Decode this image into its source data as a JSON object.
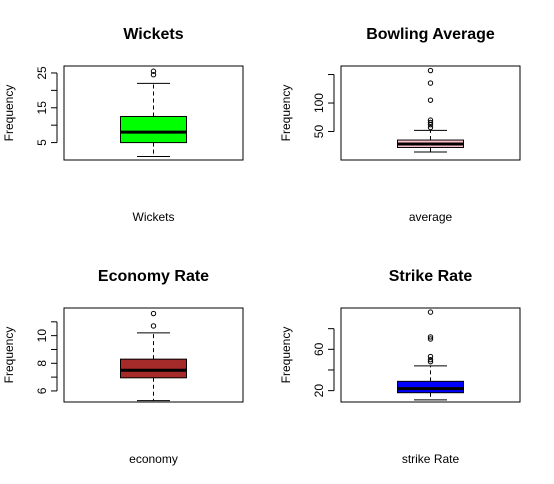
{
  "chart_data": [
    {
      "type": "boxplot",
      "title": "Wickets",
      "xlabel": "Wickets",
      "ylabel": "Frequency",
      "ylim": [
        0,
        27
      ],
      "yticks": [
        5,
        15,
        25
      ],
      "minor_ticks": [
        10,
        20
      ],
      "box_color": "#00ff00",
      "stats": {
        "min": 1,
        "q1": 5,
        "median": 8,
        "q3": 12.5,
        "max": 22
      },
      "outliers": [
        24.5,
        25.5
      ]
    },
    {
      "type": "boxplot",
      "title": "Bowling Average",
      "xlabel": "average",
      "ylabel": "Frequency",
      "ylim": [
        0,
        165
      ],
      "yticks": [
        50,
        100
      ],
      "minor_ticks": [
        150
      ],
      "box_color": "#ffc0cb",
      "stats": {
        "min": 14,
        "q1": 22,
        "median": 28,
        "q3": 35,
        "max": 52
      },
      "outliers": [
        57,
        62,
        66,
        70,
        105,
        135,
        157
      ]
    },
    {
      "type": "boxplot",
      "title": "Economy Rate",
      "xlabel": "economy",
      "ylabel": "Frequency",
      "ylim": [
        5.2,
        12
      ],
      "yticks": [
        6,
        8,
        10
      ],
      "minor_ticks": [
        7,
        9,
        11
      ],
      "box_color": "#a52a2a",
      "stats": {
        "min": 5.3,
        "q1": 6.95,
        "median": 7.5,
        "q3": 8.3,
        "max": 10.2
      },
      "outliers": [
        10.7,
        11.6
      ]
    },
    {
      "type": "boxplot",
      "title": "Strike Rate",
      "xlabel": "strike Rate",
      "ylabel": "Frequency",
      "ylim": [
        9,
        100
      ],
      "yticks": [
        20,
        60
      ],
      "minor_ticks": [
        40,
        80
      ],
      "box_color": "#0000ff",
      "stats": {
        "min": 11,
        "q1": 18,
        "median": 22,
        "q3": 29,
        "max": 44
      },
      "outliers": [
        48,
        50,
        53,
        70,
        72,
        96
      ]
    }
  ]
}
